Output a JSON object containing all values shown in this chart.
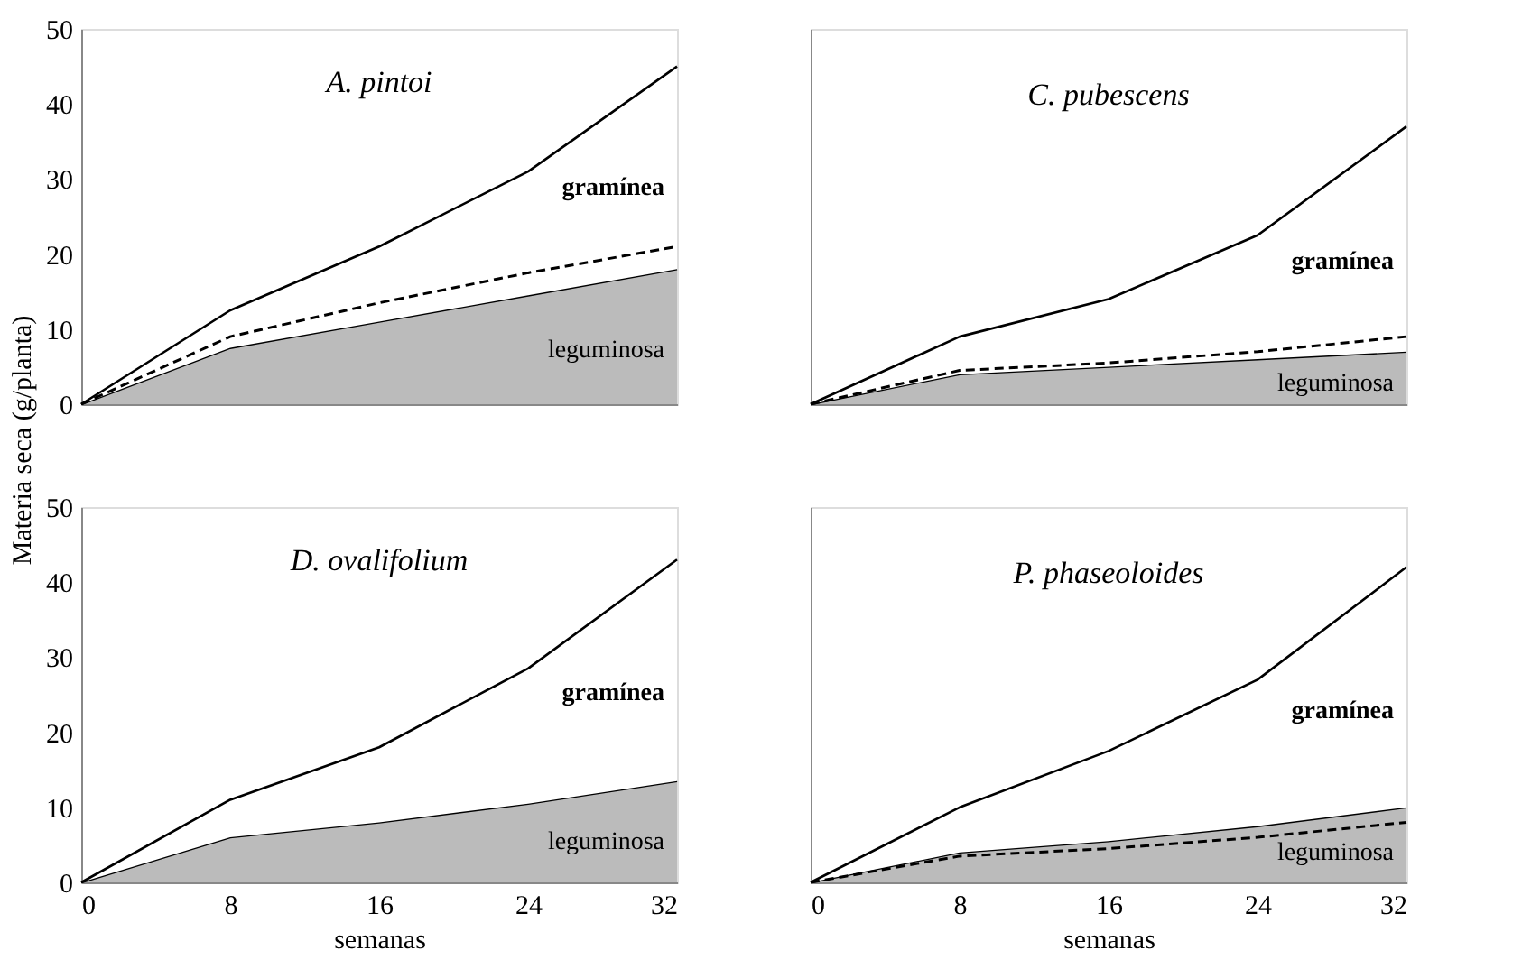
{
  "chart_data": [
    {
      "type": "area",
      "title": "A. pintoi",
      "ylabel": "Materia seca (g/planta)",
      "stacked": true,
      "tick_labels": "y",
      "x": [
        0,
        8,
        16,
        24,
        32
      ],
      "xlim": [
        0,
        32
      ],
      "ylim": [
        0,
        50
      ],
      "yticks": [
        0,
        10,
        20,
        30,
        40,
        50
      ],
      "series": [
        {
          "name": "leguminosa",
          "color": "#bbbbbb",
          "values": [
            0,
            7.5,
            11,
            14.5,
            18
          ]
        },
        {
          "name": "gramínea",
          "color": "#ffffff",
          "values": [
            0,
            5,
            10,
            16.5,
            27
          ]
        },
        {
          "type": "line",
          "color": "#000000",
          "line_style": "dashed",
          "values": [
            0,
            9,
            13.5,
            17.5,
            21
          ]
        }
      ]
    },
    {
      "type": "area",
      "title": "C. pubescens",
      "stacked": true,
      "tick_labels": false,
      "x": [
        0,
        8,
        16,
        24,
        32
      ],
      "xlim": [
        0,
        32
      ],
      "ylim": [
        0,
        50
      ],
      "series": [
        {
          "name": "leguminosa",
          "color": "#bbbbbb",
          "values": [
            0,
            4,
            5,
            6,
            7
          ]
        },
        {
          "name": "gramínea",
          "color": "#ffffff",
          "values": [
            0,
            5,
            9,
            16.5,
            30
          ]
        },
        {
          "type": "line",
          "color": "#000000",
          "line_style": "dashed",
          "values": [
            0,
            4.5,
            5.5,
            7,
            9
          ]
        }
      ]
    },
    {
      "type": "area",
      "title": "D. ovalifolium",
      "xlabel": "semanas",
      "stacked": true,
      "x": [
        0,
        8,
        16,
        24,
        32
      ],
      "xlim": [
        0,
        32
      ],
      "xticks": [
        0,
        8,
        16,
        24,
        32
      ],
      "ylim": [
        0,
        50
      ],
      "yticks": [
        0,
        10,
        20,
        30,
        40,
        50
      ],
      "series": [
        {
          "name": "leguminosa",
          "color": "#bbbbbb",
          "values": [
            0,
            6,
            8,
            10.5,
            13.5
          ]
        },
        {
          "name": "gramínea",
          "color": "#ffffff",
          "values": [
            0,
            5,
            10,
            18,
            29.5
          ]
        }
      ]
    },
    {
      "type": "area",
      "title": "P. phaseoloides",
      "xlabel": "semanas",
      "stacked": true,
      "tick_labels": "x",
      "x": [
        0,
        8,
        16,
        24,
        32
      ],
      "xlim": [
        0,
        32
      ],
      "xticks": [
        0,
        8,
        16,
        24,
        32
      ],
      "ylim": [
        0,
        50
      ],
      "series": [
        {
          "name": "leguminosa",
          "color": "#bbbbbb",
          "values": [
            0,
            4,
            5.5,
            7.5,
            10
          ]
        },
        {
          "name": "gramínea",
          "color": "#ffffff",
          "values": [
            0,
            6,
            12,
            19.5,
            32
          ]
        },
        {
          "type": "line",
          "color": "#000000",
          "line_style": "dashed",
          "values": [
            0,
            3.5,
            4.5,
            6,
            8
          ]
        }
      ]
    }
  ]
}
